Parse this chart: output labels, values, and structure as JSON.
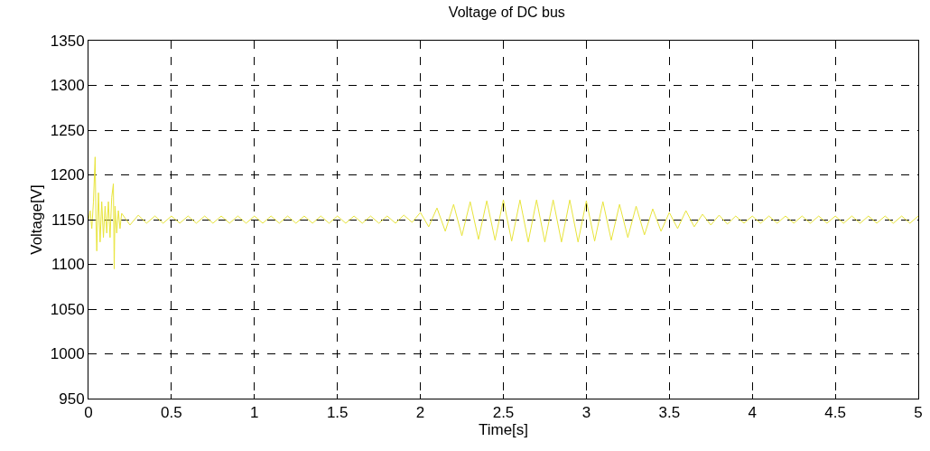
{
  "chart_data": {
    "type": "line",
    "title": "Voltage of DC bus",
    "xlabel": "Time[s]",
    "ylabel": "Voltage[V]",
    "xlim": [
      0,
      5
    ],
    "xticks": [
      0,
      0.5,
      1,
      1.5,
      2,
      2.5,
      3,
      3.5,
      4,
      4.5,
      5
    ],
    "ylim": [
      950,
      1350
    ],
    "yticks": [
      950,
      1000,
      1050,
      1100,
      1150,
      1200,
      1250,
      1300,
      1350
    ],
    "grid": true,
    "marker": "none",
    "line_style": "solid",
    "series": [
      {
        "color": "#e8e43a",
        "x": [
          0,
          0.01,
          0.02,
          0.03,
          0.04,
          0.045,
          0.05,
          0.06,
          0.07,
          0.08,
          0.09,
          0.1,
          0.11,
          0.12,
          0.13,
          0.14,
          0.15,
          0.155,
          0.16,
          0.17,
          0.18,
          0.19,
          0.2,
          0.25,
          0.3,
          0.35,
          0.4,
          0.45,
          0.5,
          0.55,
          0.6,
          0.65,
          0.7,
          0.75,
          0.8,
          0.85,
          0.9,
          0.95,
          1.0,
          1.05,
          1.1,
          1.15,
          1.2,
          1.25,
          1.3,
          1.35,
          1.4,
          1.45,
          1.5,
          1.55,
          1.6,
          1.65,
          1.7,
          1.75,
          1.8,
          1.85,
          1.9,
          1.95,
          2.0,
          2.05,
          2.1,
          2.15,
          2.2,
          2.25,
          2.3,
          2.35,
          2.4,
          2.45,
          2.5,
          2.55,
          2.6,
          2.65,
          2.7,
          2.75,
          2.8,
          2.85,
          2.9,
          2.95,
          3.0,
          3.05,
          3.1,
          3.15,
          3.2,
          3.25,
          3.3,
          3.35,
          3.4,
          3.45,
          3.5,
          3.55,
          3.6,
          3.65,
          3.7,
          3.75,
          3.8,
          3.85,
          3.9,
          3.95,
          4.0,
          4.05,
          4.1,
          4.15,
          4.2,
          4.25,
          4.3,
          4.35,
          4.4,
          4.45,
          4.5,
          4.55,
          4.6,
          4.65,
          4.7,
          4.75,
          4.8,
          4.85,
          4.9,
          4.95,
          5.0
        ],
        "values": [
          1150,
          1160,
          1140,
          1170,
          1220,
          1150,
          1115,
          1180,
          1125,
          1170,
          1130,
          1165,
          1135,
          1170,
          1130,
          1175,
          1190,
          1095,
          1165,
          1135,
          1160,
          1140,
          1157,
          1144,
          1155,
          1146,
          1154,
          1146,
          1154,
          1146,
          1154,
          1146,
          1154,
          1146,
          1154,
          1146,
          1154,
          1146,
          1154,
          1146,
          1154,
          1146,
          1154,
          1146,
          1154,
          1146,
          1154,
          1146,
          1154,
          1146,
          1154,
          1146,
          1154,
          1146,
          1154,
          1146,
          1155,
          1147,
          1158,
          1142,
          1163,
          1137,
          1167,
          1132,
          1170,
          1128,
          1171,
          1127,
          1172,
          1126,
          1172,
          1125,
          1172,
          1125,
          1172,
          1125,
          1172,
          1125,
          1171,
          1126,
          1170,
          1127,
          1167,
          1130,
          1165,
          1133,
          1162,
          1137,
          1158,
          1140,
          1160,
          1142,
          1156,
          1144,
          1155,
          1145,
          1154,
          1146,
          1154,
          1146,
          1154,
          1146,
          1154,
          1146,
          1154,
          1146,
          1154,
          1146,
          1154,
          1146,
          1154,
          1146,
          1154,
          1146,
          1154,
          1146,
          1154,
          1146,
          1154
        ]
      }
    ]
  }
}
